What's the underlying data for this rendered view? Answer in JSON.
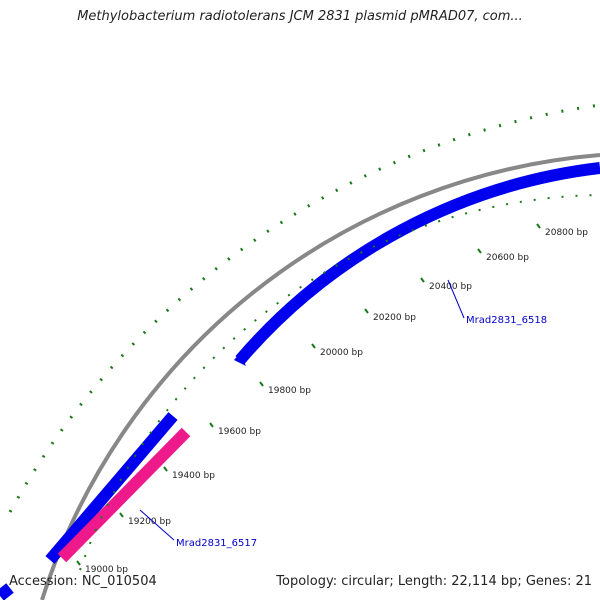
{
  "title": "Methylobacterium radiotolerans JCM 2831 plasmid pMRAD07, com...",
  "footer": {
    "accession": "Accession: NC_010504",
    "summary": "Topology: circular; Length: 22,114 bp; Genes: 21"
  },
  "colors": {
    "backbone": "#888888",
    "forward_gene": "#0000ee",
    "reverse_gene": "#ee1a8c",
    "tick": "#1a7a1a",
    "label_line": "#0000cc"
  },
  "ticks": [
    {
      "label": "19000 bp"
    },
    {
      "label": "19200 bp"
    },
    {
      "label": "19400 bp"
    },
    {
      "label": "19600 bp"
    },
    {
      "label": "19800 bp"
    },
    {
      "label": "20000 bp"
    },
    {
      "label": "20200 bp"
    },
    {
      "label": "20400 bp"
    },
    {
      "label": "20600 bp"
    },
    {
      "label": "20800 bp"
    }
  ],
  "genes": [
    {
      "name": "Mrad2831_6517",
      "strand": "reverse"
    },
    {
      "name": "Mrad2831_6518",
      "strand": "forward"
    }
  ]
}
